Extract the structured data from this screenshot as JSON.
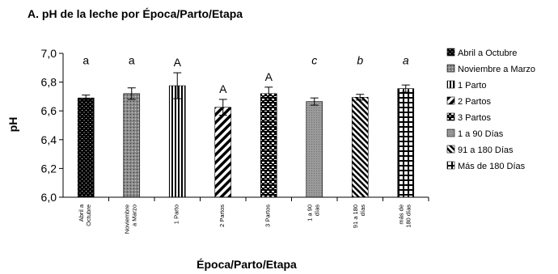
{
  "chart_data": {
    "type": "bar",
    "title": "A. pH de la leche por Época/Parto/Etapa",
    "xlabel": "Época/Parto/Etapa",
    "ylabel": "pH",
    "ylim": [
      6.0,
      7.0
    ],
    "yticks": [
      "6,0",
      "6,2",
      "6,4",
      "6,6",
      "6,8",
      "7,0"
    ],
    "grid": false,
    "legend_position": "right",
    "categories": [
      [
        "Abril a",
        "Octubre"
      ],
      [
        "Noviembre",
        "a Marzo"
      ],
      [
        "1 Parto"
      ],
      [
        "2 Partos"
      ],
      [
        "3 Partos"
      ],
      [
        "1 a 90",
        "días"
      ],
      [
        "91 a 180",
        "días"
      ],
      [
        "más de",
        "180 días"
      ]
    ],
    "values": [
      6.69,
      6.72,
      6.775,
      6.625,
      6.72,
      6.665,
      6.695,
      6.755
    ],
    "errors": [
      0.02,
      0.04,
      0.09,
      0.055,
      0.045,
      0.025,
      0.02,
      0.025
    ],
    "significance": [
      "a",
      "a",
      "A",
      "A",
      "A",
      "c",
      "b",
      "a"
    ],
    "significance_italic": [
      false,
      false,
      false,
      false,
      false,
      true,
      true,
      true
    ],
    "legend": [
      "Abril a Octubre",
      "Noviembre a Marzo",
      "1 Parto",
      "2 Partos",
      "3 Partos",
      "1 a 90 Días",
      "91 a 180 Días",
      "Más de 180 Días"
    ]
  }
}
